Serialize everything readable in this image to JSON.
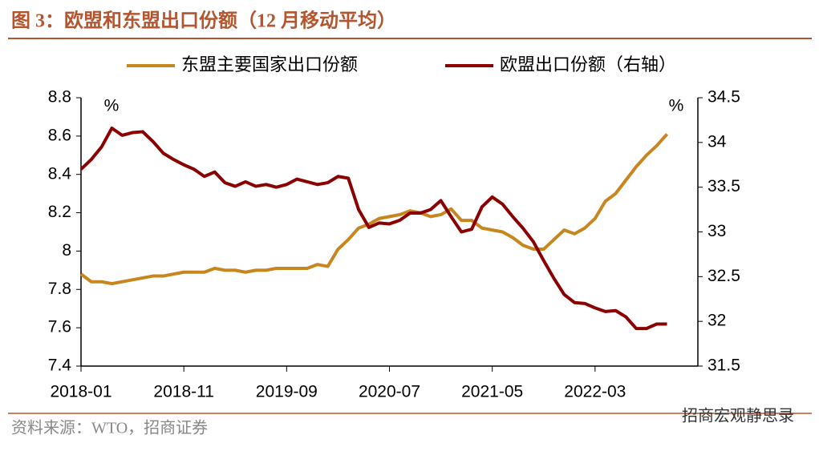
{
  "title": "图 3：欧盟和东盟出口份额（12 月移动平均）",
  "source": "资料来源：WTO，招商证券",
  "watermark": "招商宏观静思录",
  "chart_data": {
    "type": "line",
    "y_unit": "%",
    "y2_unit": "%",
    "categories": [
      "2018-01",
      null,
      null,
      null,
      null,
      null,
      null,
      null,
      null,
      null,
      "2018-11",
      null,
      null,
      null,
      null,
      null,
      null,
      null,
      null,
      null,
      "2019-09",
      null,
      null,
      null,
      null,
      null,
      null,
      null,
      null,
      null,
      "2020-07",
      null,
      null,
      null,
      null,
      null,
      null,
      null,
      null,
      null,
      "2021-05",
      null,
      null,
      null,
      null,
      null,
      null,
      null,
      null,
      null,
      "2022-03",
      null,
      null,
      null,
      null,
      null,
      null,
      null,
      null,
      null
    ],
    "series": [
      {
        "name": "东盟主要国家出口份额",
        "color": "#c8861e",
        "axis": "y",
        "values": [
          7.88,
          7.84,
          7.84,
          7.83,
          7.84,
          7.85,
          7.86,
          7.87,
          7.87,
          7.88,
          7.89,
          7.89,
          7.89,
          7.91,
          7.9,
          7.9,
          7.89,
          7.9,
          7.9,
          7.91,
          7.91,
          7.91,
          7.91,
          7.93,
          7.92,
          8.01,
          8.06,
          8.12,
          8.14,
          8.17,
          8.18,
          8.19,
          8.21,
          8.2,
          8.18,
          8.19,
          8.22,
          8.16,
          8.16,
          8.12,
          8.11,
          8.1,
          8.07,
          8.03,
          8.01,
          8.01,
          8.06,
          8.11,
          8.09,
          8.12,
          8.17,
          8.26,
          8.3,
          8.37,
          8.44,
          8.5,
          8.55,
          8.61,
          null,
          null
        ]
      },
      {
        "name": "欧盟出口份额（右轴）",
        "color": "#8b0000",
        "axis": "y2",
        "values": [
          33.7,
          33.81,
          33.95,
          34.16,
          34.08,
          34.11,
          34.12,
          34.01,
          33.88,
          33.81,
          33.75,
          33.7,
          33.62,
          33.67,
          33.55,
          33.51,
          33.56,
          33.51,
          33.53,
          33.5,
          33.53,
          33.59,
          33.56,
          33.53,
          33.55,
          33.62,
          33.6,
          33.25,
          33.05,
          33.1,
          33.09,
          33.13,
          33.21,
          33.21,
          33.25,
          33.35,
          33.17,
          33.0,
          33.03,
          33.28,
          33.39,
          33.31,
          33.17,
          33.04,
          32.89,
          32.68,
          32.48,
          32.3,
          32.21,
          32.2,
          32.15,
          32.11,
          32.12,
          32.05,
          31.92,
          31.92,
          31.97,
          31.97,
          null,
          null
        ]
      }
    ],
    "ylim": [
      7.4,
      8.8
    ],
    "yticks": [
      7.4,
      7.6,
      7.8,
      8,
      8.2,
      8.4,
      8.6,
      8.8
    ],
    "y2lim": [
      31.5,
      34.5
    ],
    "y2ticks": [
      31.5,
      32,
      32.5,
      33,
      33.5,
      34,
      34.5
    ]
  }
}
